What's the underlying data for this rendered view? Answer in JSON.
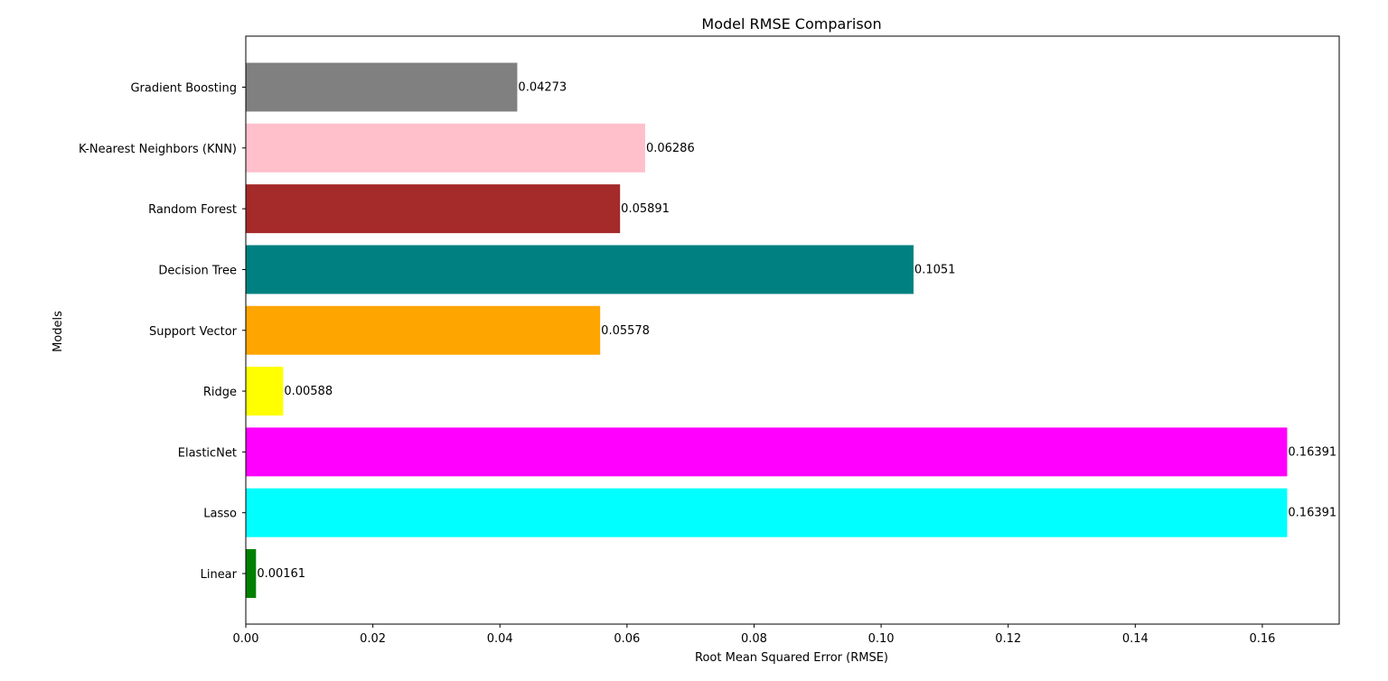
{
  "chart_data": {
    "type": "bar",
    "orientation": "horizontal",
    "title": "Model RMSE Comparison",
    "xlabel": "Root Mean Squared Error (RMSE)",
    "ylabel": "Models",
    "xlim": [
      0,
      0.1721
    ],
    "xticks": [
      "0.00",
      "0.02",
      "0.04",
      "0.06",
      "0.08",
      "0.10",
      "0.12",
      "0.14",
      "0.16"
    ],
    "grid": false,
    "categories": [
      "Linear",
      "Lasso",
      "ElasticNet",
      "Ridge",
      "Support Vector",
      "Decision Tree",
      "Random Forest",
      "K-Nearest Neighbors (KNN)",
      "Gradient Boosting"
    ],
    "values": [
      0.00161,
      0.16391,
      0.16391,
      0.00588,
      0.05578,
      0.1051,
      0.05891,
      0.06286,
      0.04273
    ],
    "value_labels": [
      "0.00161",
      "0.16391",
      "0.16391",
      "0.00588",
      "0.05578",
      "0.1051",
      "0.05891",
      "0.06286",
      "0.04273"
    ],
    "colors": [
      "#008000",
      "#00ffff",
      "#ff00ff",
      "#ffff00",
      "#ffa500",
      "#008080",
      "#a52a2a",
      "#ffc0cb",
      "#808080"
    ]
  }
}
